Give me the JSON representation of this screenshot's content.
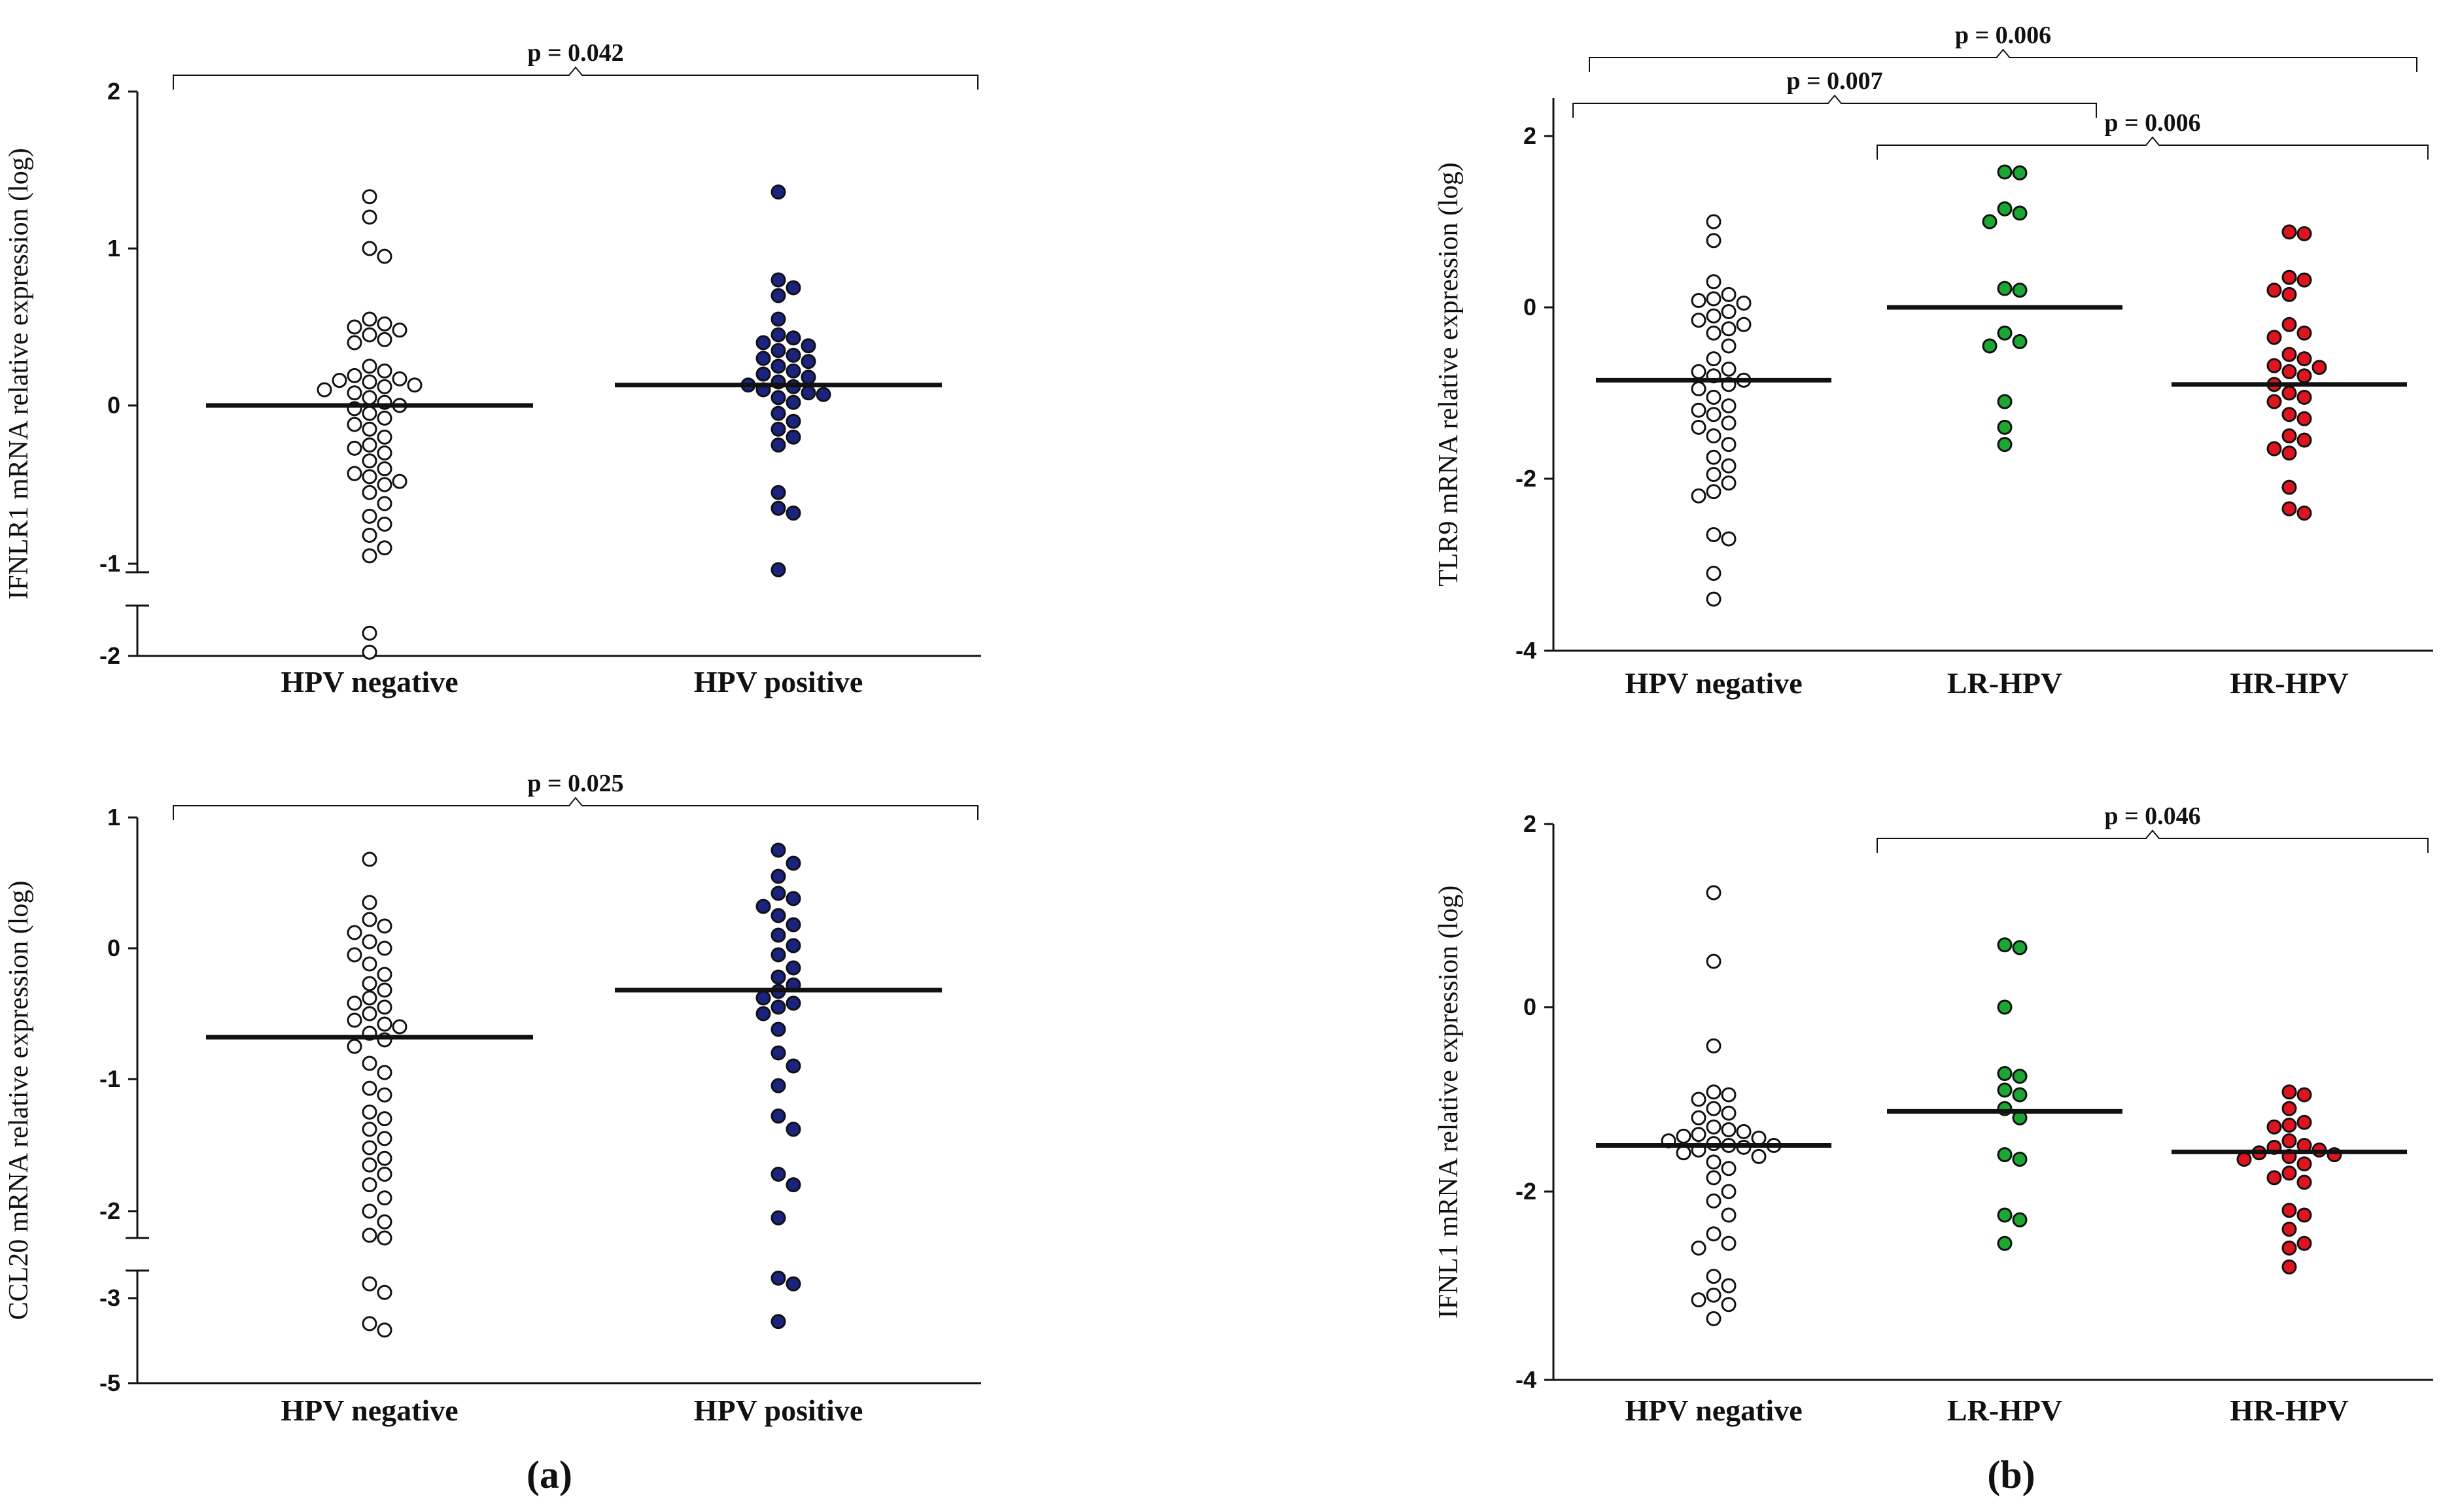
{
  "colors": {
    "hpv_negative": "#ffffff",
    "hpv_positive": "#1a237e",
    "lr_hpv": "#1aa832",
    "hr_hpv": "#e0141e",
    "outline": "#111111"
  },
  "panel_labels": [
    "(a)",
    "(b)"
  ],
  "chart_data": [
    {
      "id": "a_top",
      "type": "scatter",
      "ylabel": "IFNLR1 mRNA relative expression (log)",
      "categories": [
        "HPV negative",
        "HPV positive"
      ],
      "ylim": [
        -2,
        2
      ],
      "yticks": [
        -2,
        -1,
        0,
        1,
        2
      ],
      "axis_break": [
        -1.1,
        -1.4
      ],
      "medians": [
        0.0,
        0.13
      ],
      "pvalues": [
        {
          "from": 0,
          "to": 1,
          "label": "p = 0.042"
        }
      ],
      "series": [
        {
          "name": "HPV negative",
          "color_key": "hpv_negative",
          "values": [
            1.33,
            1.2,
            1.0,
            0.95,
            0.55,
            0.52,
            0.5,
            0.48,
            0.45,
            0.42,
            0.4,
            0.25,
            0.22,
            0.19,
            0.17,
            0.16,
            0.15,
            0.13,
            0.12,
            0.1,
            0.08,
            0.05,
            0.02,
            0.0,
            -0.02,
            -0.05,
            -0.08,
            -0.12,
            -0.15,
            -0.2,
            -0.25,
            -0.27,
            -0.3,
            -0.35,
            -0.4,
            -0.43,
            -0.45,
            -0.48,
            -0.5,
            -0.55,
            -0.62,
            -0.7,
            -0.75,
            -0.82,
            -0.9,
            -0.95,
            -1.7,
            -1.95
          ]
        },
        {
          "name": "HPV positive",
          "color_key": "hpv_positive",
          "values": [
            1.36,
            0.8,
            0.75,
            0.7,
            0.55,
            0.45,
            0.43,
            0.4,
            0.38,
            0.35,
            0.32,
            0.3,
            0.28,
            0.25,
            0.22,
            0.2,
            0.18,
            0.15,
            0.13,
            0.12,
            0.1,
            0.08,
            0.07,
            0.05,
            0.02,
            -0.05,
            -0.1,
            -0.15,
            -0.2,
            -0.25,
            -0.55,
            -0.65,
            -0.68,
            -1.07
          ]
        }
      ]
    },
    {
      "id": "a_bottom",
      "type": "scatter",
      "ylabel": "CCL20 mRNA relative expression (log)",
      "categories": [
        "HPV negative",
        "HPV positive"
      ],
      "ylim": [
        -5,
        1
      ],
      "yticks": [
        -5,
        -3,
        -2,
        -1,
        0,
        1
      ],
      "axis_break": [
        -2.2,
        -2.55
      ],
      "medians": [
        -0.68,
        -0.32
      ],
      "pvalues": [
        {
          "from": 0,
          "to": 1,
          "label": "p = 0.025"
        }
      ],
      "series": [
        {
          "name": "HPV negative",
          "color_key": "hpv_negative",
          "values": [
            0.68,
            0.35,
            0.22,
            0.17,
            0.12,
            0.05,
            0.0,
            -0.05,
            -0.12,
            -0.2,
            -0.27,
            -0.32,
            -0.38,
            -0.42,
            -0.45,
            -0.5,
            -0.55,
            -0.58,
            -0.6,
            -0.65,
            -0.7,
            -0.75,
            -0.88,
            -0.95,
            -1.07,
            -1.12,
            -1.25,
            -1.3,
            -1.38,
            -1.45,
            -1.52,
            -1.6,
            -1.65,
            -1.72,
            -1.8,
            -1.9,
            -2.0,
            -2.08,
            -2.18,
            -2.2,
            -2.75,
            -2.9,
            -3.6,
            -3.75
          ]
        },
        {
          "name": "HPV positive",
          "color_key": "hpv_positive",
          "values": [
            0.75,
            0.65,
            0.55,
            0.42,
            0.38,
            0.32,
            0.25,
            0.18,
            0.1,
            0.02,
            -0.05,
            -0.15,
            -0.22,
            -0.28,
            -0.33,
            -0.38,
            -0.42,
            -0.45,
            -0.5,
            -0.62,
            -0.8,
            -0.9,
            -1.05,
            -1.28,
            -1.38,
            -1.72,
            -1.8,
            -2.05,
            -2.65,
            -2.75,
            -3.55
          ]
        }
      ]
    },
    {
      "id": "b_top",
      "type": "scatter",
      "ylabel": "TLR9 mRNA relative expression (log)",
      "categories": [
        "HPV negative",
        "LR-HPV",
        "HR-HPV"
      ],
      "ylim": [
        -4,
        2.5
      ],
      "yticks": [
        -4,
        -2,
        0,
        2
      ],
      "axis_break": null,
      "medians": [
        -0.85,
        0.0,
        -0.9
      ],
      "pvalues": [
        {
          "from": 0,
          "to": 2,
          "label": "p = 0.006"
        },
        {
          "from": 0,
          "to": 1,
          "label": "p = 0.007"
        },
        {
          "from": 1,
          "to": 2,
          "label": "p = 0.006"
        }
      ],
      "series": [
        {
          "name": "HPV negative",
          "color_key": "hpv_negative",
          "values": [
            1.0,
            0.78,
            0.3,
            0.15,
            0.1,
            0.08,
            0.05,
            -0.05,
            -0.1,
            -0.15,
            -0.2,
            -0.25,
            -0.3,
            -0.45,
            -0.6,
            -0.72,
            -0.75,
            -0.8,
            -0.85,
            -0.9,
            -0.95,
            -1.05,
            -1.15,
            -1.2,
            -1.25,
            -1.35,
            -1.4,
            -1.5,
            -1.6,
            -1.75,
            -1.85,
            -1.95,
            -2.05,
            -2.15,
            -2.2,
            -2.65,
            -2.7,
            -3.1,
            -3.4
          ]
        },
        {
          "name": "LR-HPV",
          "color_key": "lr_hpv",
          "values": [
            1.58,
            1.57,
            1.15,
            1.1,
            1.0,
            0.22,
            0.2,
            -0.3,
            -0.4,
            -0.45,
            -1.1,
            -1.4,
            -1.6
          ]
        },
        {
          "name": "HR-HPV",
          "color_key": "hr_hpv",
          "values": [
            0.88,
            0.86,
            0.35,
            0.32,
            0.2,
            0.15,
            -0.2,
            -0.3,
            -0.35,
            -0.55,
            -0.6,
            -0.68,
            -0.7,
            -0.75,
            -0.8,
            -0.9,
            -1.0,
            -1.05,
            -1.1,
            -1.25,
            -1.3,
            -1.5,
            -1.55,
            -1.65,
            -1.7,
            -2.1,
            -2.35,
            -2.4
          ]
        }
      ]
    },
    {
      "id": "b_bottom",
      "type": "scatter",
      "ylabel": "IFNL1 mRNA relative expression (log)",
      "categories": [
        "HPV negative",
        "LR-HPV",
        "HR-HPV"
      ],
      "ylim": [
        -4,
        2
      ],
      "yticks": [
        -4,
        -2,
        0,
        2
      ],
      "axis_break": null,
      "medians": [
        -1.5,
        -1.13,
        -1.57
      ],
      "pvalues": [
        {
          "from": 1,
          "to": 2,
          "label": "p = 0.046"
        }
      ],
      "series": [
        {
          "name": "HPV negative",
          "color_key": "hpv_negative",
          "values": [
            1.25,
            0.5,
            -0.42,
            -0.92,
            -0.95,
            -1.0,
            -1.1,
            -1.15,
            -1.2,
            -1.3,
            -1.33,
            -1.35,
            -1.38,
            -1.4,
            -1.42,
            -1.45,
            -1.48,
            -1.5,
            -1.5,
            -1.52,
            -1.55,
            -1.58,
            -1.62,
            -1.68,
            -1.75,
            -1.85,
            -2.0,
            -2.1,
            -2.25,
            -2.45,
            -2.55,
            -2.6,
            -2.9,
            -3.0,
            -3.1,
            -3.15,
            -3.2,
            -3.35
          ]
        },
        {
          "name": "LR-HPV",
          "color_key": "lr_hpv",
          "values": [
            0.68,
            0.65,
            0.0,
            -0.72,
            -0.75,
            -0.9,
            -0.95,
            -1.1,
            -1.2,
            -1.6,
            -1.65,
            -2.25,
            -2.3,
            -2.55
          ]
        },
        {
          "name": "HR-HPV",
          "color_key": "hr_hpv",
          "values": [
            -0.92,
            -0.95,
            -1.1,
            -1.25,
            -1.28,
            -1.3,
            -1.45,
            -1.5,
            -1.52,
            -1.55,
            -1.58,
            -1.6,
            -1.62,
            -1.65,
            -1.7,
            -1.8,
            -1.85,
            -1.9,
            -2.2,
            -2.25,
            -2.4,
            -2.55,
            -2.6,
            -2.8
          ]
        }
      ]
    }
  ]
}
